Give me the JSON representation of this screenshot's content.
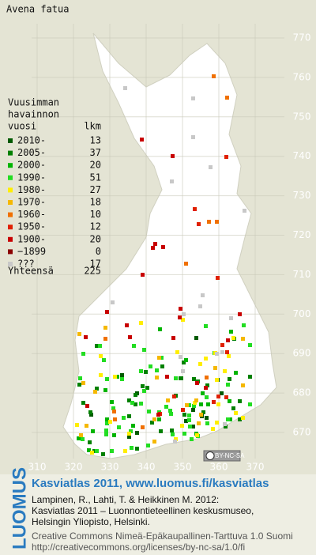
{
  "title": "Avena fatua",
  "legend": {
    "heading": [
      "Vuusimman",
      "havainnon",
      "vuosi"
    ],
    "count_heading": "lkm",
    "items": [
      {
        "label": "2010-",
        "count": 13,
        "color": "#005a00"
      },
      {
        "label": "2005-",
        "count": 37,
        "color": "#008000"
      },
      {
        "label": "2000-",
        "count": 20,
        "color": "#00b400"
      },
      {
        "label": "1990-",
        "count": 51,
        "color": "#22dd22"
      },
      {
        "label": "1980-",
        "count": 27,
        "color": "#ffee00"
      },
      {
        "label": "1970-",
        "count": 18,
        "color": "#f5b800"
      },
      {
        "label": "1960-",
        "count": 10,
        "color": "#f07000"
      },
      {
        "label": "1950-",
        "count": 12,
        "color": "#e02000"
      },
      {
        "label": "1900-",
        "count": 20,
        "color": "#c80000"
      },
      {
        "label": "−1899",
        "count": 0,
        "color": "#8b0000"
      },
      {
        "label": "???",
        "count": 17,
        "color": "#c8c8c8"
      }
    ],
    "total_label": "Yhteensä",
    "total": 225
  },
  "map": {
    "xticks": [
      310,
      320,
      330,
      340,
      350,
      360,
      370
    ],
    "yticks": [
      670,
      680,
      690,
      700,
      710,
      720,
      730,
      740,
      750,
      760,
      770
    ]
  },
  "license_badge": "BY-NC-SA",
  "footer": {
    "brand": "LUOMUS",
    "headline": "Kasviatlas 2011, www.luomus.fi/kasviatlas",
    "citation": [
      "Lampinen, R., Lahti, T. & Heikkinen M. 2012:",
      "Kasviatlas 2011 – Luonnontieteellinen keskusmuseo,",
      "Helsingin Yliopisto, Helsinki."
    ],
    "license": [
      "Creative Commons Nimeä-Epäkaupallinen-Tarttuva 1.0 Suomi",
      "http://creativecommons.org/licenses/by-nc-sa/1.0/fi"
    ]
  }
}
